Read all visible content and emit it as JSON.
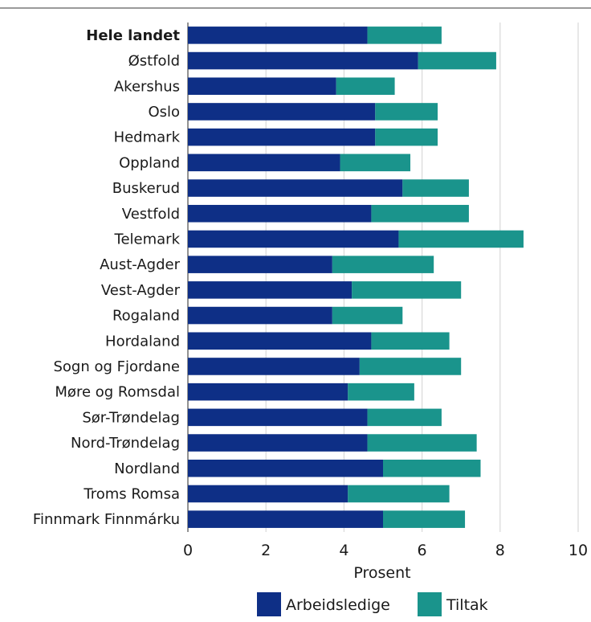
{
  "chart_data": {
    "type": "bar",
    "orientation": "horizontal",
    "stacked": true,
    "categories": [
      "Hele landet",
      "Østfold",
      "Akershus",
      "Oslo",
      "Hedmark",
      "Oppland",
      "Buskerud",
      "Vestfold",
      "Telemark",
      "Aust-Agder",
      "Vest-Agder",
      "Rogaland",
      "Hordaland",
      "Sogn og Fjordane",
      "Møre og Romsdal",
      "Sør-Trøndelag",
      "Nord-Trøndelag",
      "Nordland",
      "Troms Romsa",
      "Finnmark Finnmárku"
    ],
    "bold_categories": [
      "Hele landet"
    ],
    "series": [
      {
        "name": "Arbeidsledige",
        "color": "#0e2f86",
        "values": [
          4.6,
          5.9,
          3.8,
          4.8,
          4.8,
          3.9,
          5.5,
          4.7,
          5.4,
          3.7,
          4.2,
          3.7,
          4.7,
          4.4,
          4.1,
          4.6,
          4.6,
          5.0,
          4.1,
          5.0
        ]
      },
      {
        "name": "Tiltak",
        "color": "#1a948c",
        "values": [
          1.9,
          2.0,
          1.5,
          1.6,
          1.6,
          1.8,
          1.7,
          2.5,
          3.2,
          2.6,
          2.8,
          1.8,
          2.0,
          2.6,
          1.7,
          1.9,
          2.8,
          2.5,
          2.6,
          2.1
        ]
      }
    ],
    "xlim": [
      0,
      10
    ],
    "xticks": [
      "0",
      "2",
      "4",
      "6",
      "8",
      "10"
    ],
    "xlabel": "Prosent",
    "ylabel": "",
    "grid": "vertical",
    "legend_position": "bottom"
  }
}
